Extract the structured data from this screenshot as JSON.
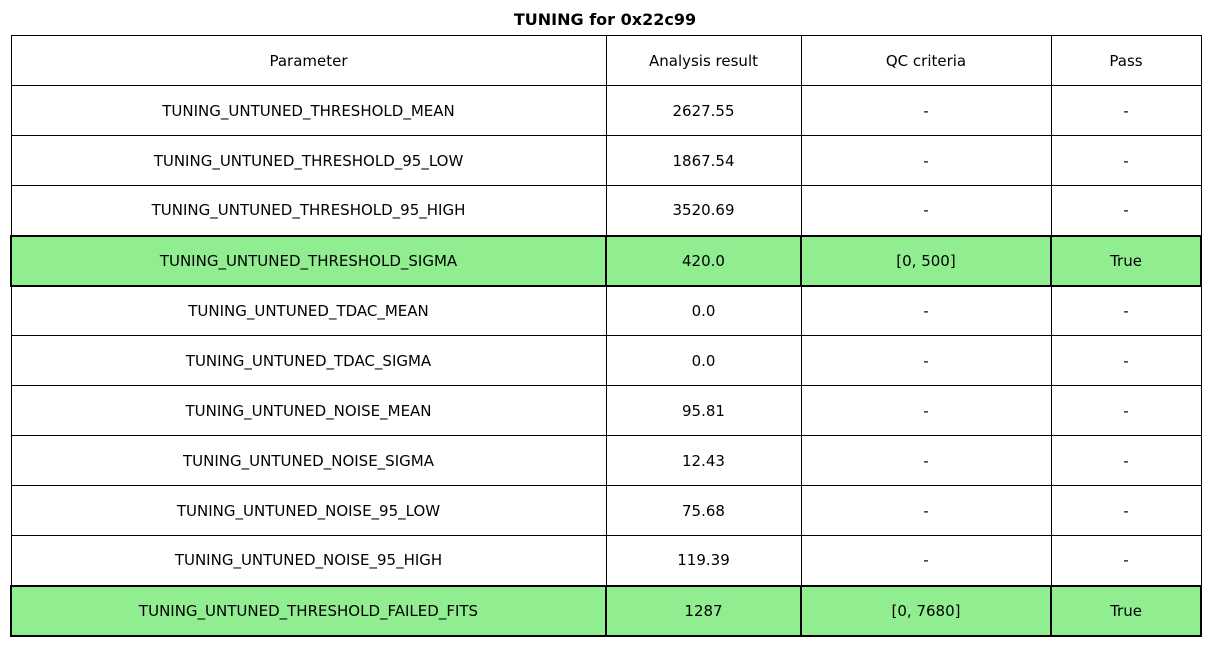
{
  "title": "TUNING for 0x22c99",
  "colors": {
    "highlight_row": "#90ee90",
    "border": "#000000",
    "background": "#ffffff"
  },
  "chart_data": {
    "type": "table",
    "title": "TUNING for 0x22c99",
    "columns": [
      "Parameter",
      "Analysis result",
      "QC criteria",
      "Pass"
    ],
    "rows": [
      {
        "parameter": "TUNING_UNTUNED_THRESHOLD_MEAN",
        "analysis_result": "2627.55",
        "qc_criteria": "-",
        "pass": "-",
        "highlighted": false
      },
      {
        "parameter": "TUNING_UNTUNED_THRESHOLD_95_LOW",
        "analysis_result": "1867.54",
        "qc_criteria": "-",
        "pass": "-",
        "highlighted": false
      },
      {
        "parameter": "TUNING_UNTUNED_THRESHOLD_95_HIGH",
        "analysis_result": "3520.69",
        "qc_criteria": "-",
        "pass": "-",
        "highlighted": false
      },
      {
        "parameter": "TUNING_UNTUNED_THRESHOLD_SIGMA",
        "analysis_result": "420.0",
        "qc_criteria": "[0, 500]",
        "pass": "True",
        "highlighted": true
      },
      {
        "parameter": "TUNING_UNTUNED_TDAC_MEAN",
        "analysis_result": "0.0",
        "qc_criteria": "-",
        "pass": "-",
        "highlighted": false
      },
      {
        "parameter": "TUNING_UNTUNED_TDAC_SIGMA",
        "analysis_result": "0.0",
        "qc_criteria": "-",
        "pass": "-",
        "highlighted": false
      },
      {
        "parameter": "TUNING_UNTUNED_NOISE_MEAN",
        "analysis_result": "95.81",
        "qc_criteria": "-",
        "pass": "-",
        "highlighted": false
      },
      {
        "parameter": "TUNING_UNTUNED_NOISE_SIGMA",
        "analysis_result": "12.43",
        "qc_criteria": "-",
        "pass": "-",
        "highlighted": false
      },
      {
        "parameter": "TUNING_UNTUNED_NOISE_95_LOW",
        "analysis_result": "75.68",
        "qc_criteria": "-",
        "pass": "-",
        "highlighted": false
      },
      {
        "parameter": "TUNING_UNTUNED_NOISE_95_HIGH",
        "analysis_result": "119.39",
        "qc_criteria": "-",
        "pass": "-",
        "highlighted": false
      },
      {
        "parameter": "TUNING_UNTUNED_THRESHOLD_FAILED_FITS",
        "analysis_result": "1287",
        "qc_criteria": "[0, 7680]",
        "pass": "True",
        "highlighted": true
      }
    ]
  }
}
